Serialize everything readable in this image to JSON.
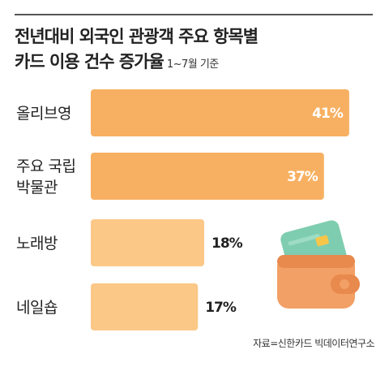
{
  "title": {
    "line1": "전년대비 외국인 관광객 주요 항목별",
    "line2": "카드 이용 건수 증가율",
    "period": "1~7월 기준"
  },
  "source": "자료=신한카드 빅데이터연구소",
  "colors": {
    "bar_dark": "#F7B062",
    "bar_light": "#FBC888",
    "label_text": "#222222",
    "value_text_inside": "#ffffff",
    "value_text_outside": "#222222"
  },
  "icon": "wallet-with-card-icon",
  "chart_data": {
    "type": "bar",
    "orientation": "horizontal",
    "categories": [
      "올리브영",
      "주요 국립 박물관",
      "노래방",
      "네일숍"
    ],
    "category_lines": [
      [
        "올리브영"
      ],
      [
        "주요 국립",
        "박물관"
      ],
      [
        "노래방"
      ],
      [
        "네일숍"
      ]
    ],
    "values": [
      41,
      37,
      18,
      17
    ],
    "value_labels": [
      "41%",
      "37%",
      "18%",
      "17%"
    ],
    "unit": "%",
    "xlim": [
      0,
      45
    ],
    "grid": false,
    "legend": "none"
  }
}
